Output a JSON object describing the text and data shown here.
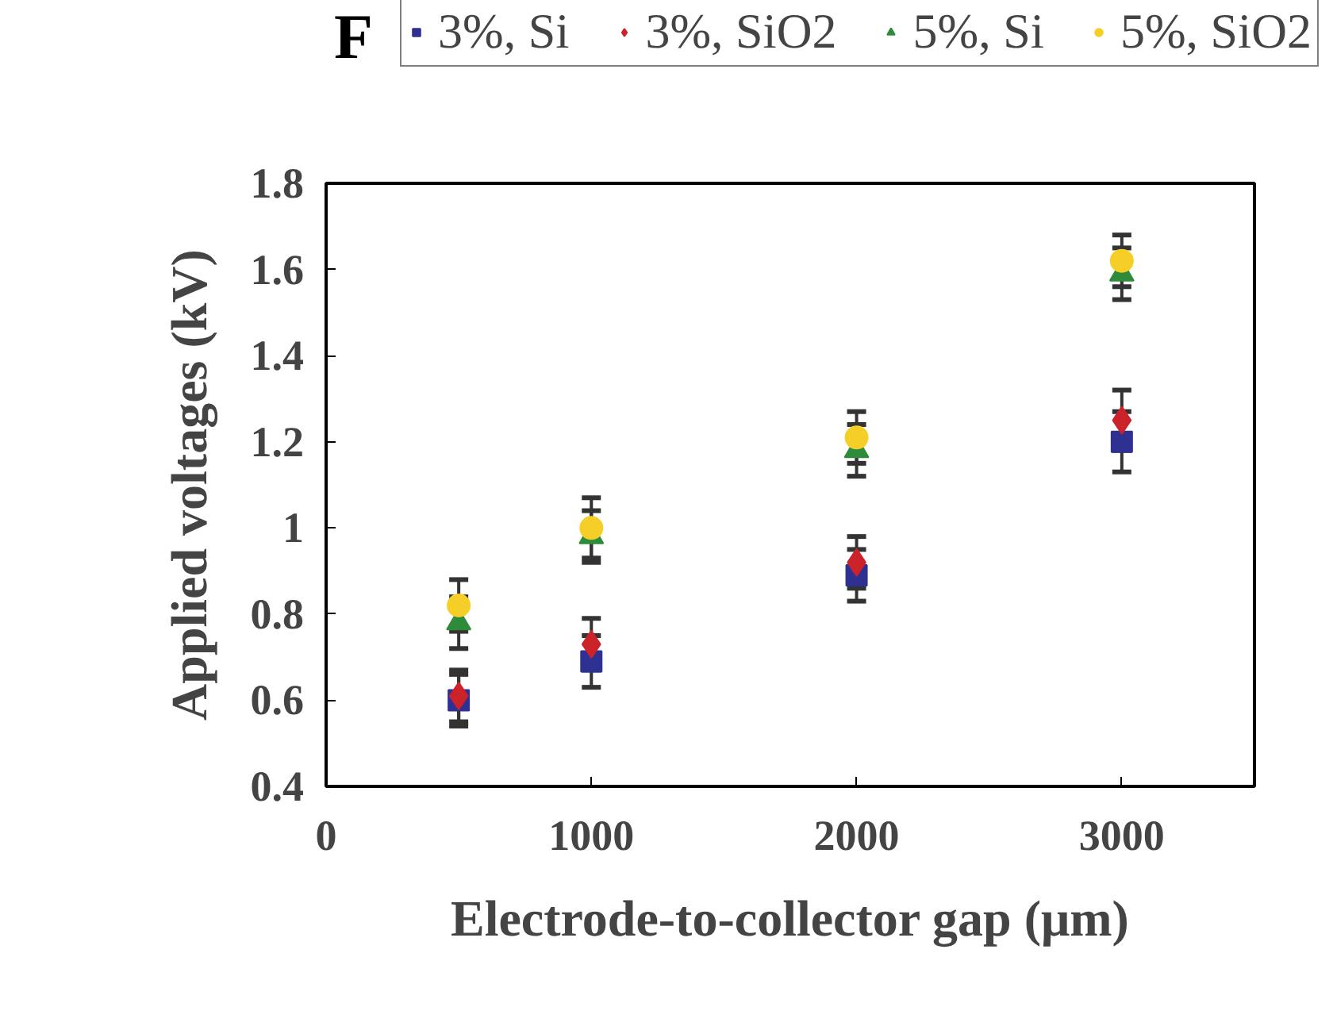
{
  "chart_data": {
    "type": "scatter",
    "xlabel": "Electrode-to-collector gap (μm)",
    "ylabel": "Applied voltages (kV)",
    "annotations": [
      "F"
    ],
    "x": [
      500,
      1000,
      2000,
      3000
    ],
    "xlim": [
      0,
      3500
    ],
    "xticks": [
      0,
      1000,
      2000,
      3000
    ],
    "ylim": [
      0.4,
      1.8
    ],
    "yticks": [
      0.4,
      0.6,
      0.8,
      1.0,
      1.2,
      1.4,
      1.6,
      1.8
    ],
    "grid": false,
    "legend": "top",
    "series": [
      {
        "name": "3%, Si",
        "color": "#2e3192",
        "marker": "square",
        "values": [
          0.6,
          0.69,
          0.89,
          1.2
        ],
        "errors": [
          0.06,
          0.06,
          0.06,
          0.07
        ]
      },
      {
        "name": "3%, SiO2",
        "color": "#cc2229",
        "marker": "diamond",
        "values": [
          0.61,
          0.73,
          0.92,
          1.25
        ],
        "errors": [
          0.06,
          0.06,
          0.06,
          0.07
        ]
      },
      {
        "name": "5%, Si",
        "color": "#2e8b3a",
        "marker": "triangle",
        "values": [
          0.78,
          0.98,
          1.18,
          1.59
        ],
        "errors": [
          0.06,
          0.06,
          0.06,
          0.06
        ]
      },
      {
        "name": "5%, SiO2",
        "color": "#f5cf27",
        "marker": "circle",
        "values": [
          0.82,
          1.0,
          1.21,
          1.62
        ],
        "errors": [
          0.06,
          0.07,
          0.06,
          0.06
        ]
      }
    ]
  }
}
